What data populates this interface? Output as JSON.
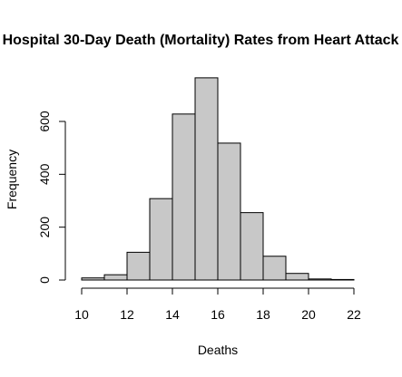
{
  "chart_data": {
    "type": "bar",
    "title": "Hospital 30-Day Death (Mortality) Rates from Heart Attack",
    "xlabel": "Deaths",
    "ylabel": "Frequency",
    "bins": [
      {
        "start": 10,
        "end": 11,
        "value": 8
      },
      {
        "start": 11,
        "end": 12,
        "value": 20
      },
      {
        "start": 12,
        "end": 13,
        "value": 105
      },
      {
        "start": 13,
        "end": 14,
        "value": 308
      },
      {
        "start": 14,
        "end": 15,
        "value": 628
      },
      {
        "start": 15,
        "end": 16,
        "value": 765
      },
      {
        "start": 16,
        "end": 17,
        "value": 518
      },
      {
        "start": 17,
        "end": 18,
        "value": 255
      },
      {
        "start": 18,
        "end": 19,
        "value": 90
      },
      {
        "start": 19,
        "end": 20,
        "value": 25
      },
      {
        "start": 20,
        "end": 21,
        "value": 4
      },
      {
        "start": 21,
        "end": 22,
        "value": 2
      }
    ],
    "xticks": [
      10,
      12,
      14,
      16,
      18,
      20,
      22
    ],
    "yticks": [
      0,
      200,
      400,
      600
    ],
    "xlim": [
      10,
      22
    ],
    "ylim": [
      0,
      800
    ],
    "bar_color": "#c8c8c8",
    "grid": false,
    "legend": "none"
  }
}
